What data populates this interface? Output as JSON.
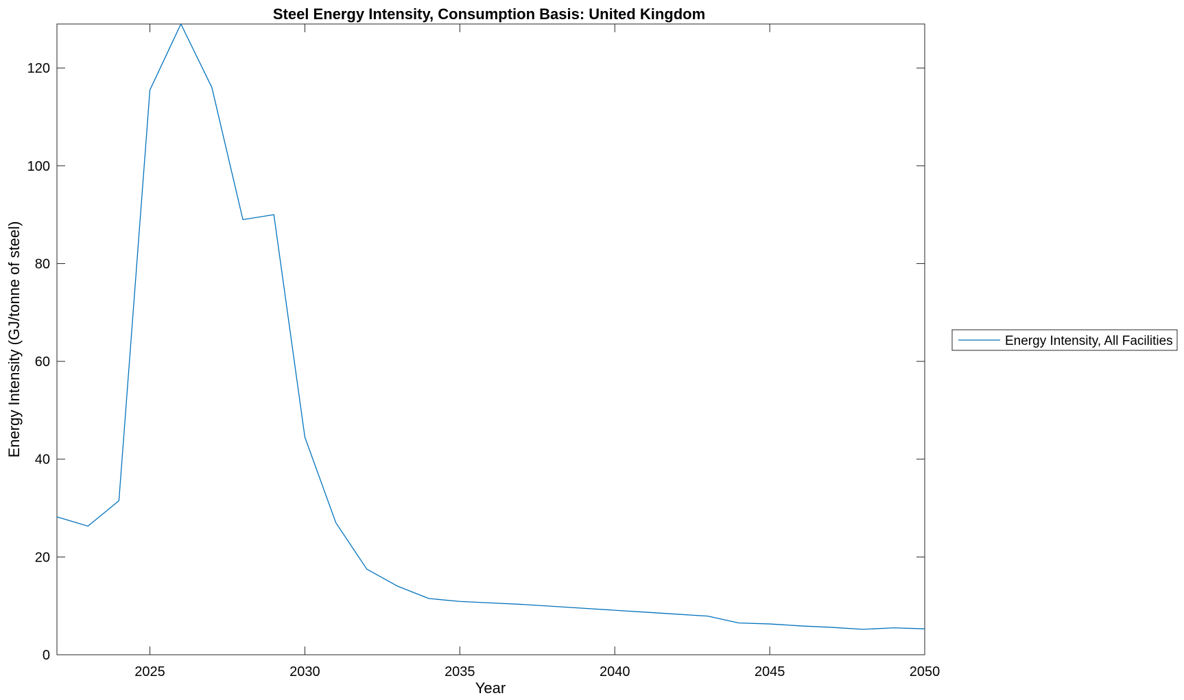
{
  "chart_data": {
    "type": "line",
    "title": "Steel Energy Intensity, Consumption Basis: United Kingdom",
    "xlabel": "Year",
    "ylabel": "Energy Intensity (GJ/tonne of steel)",
    "xlim": [
      2022,
      2050
    ],
    "ylim": [
      0,
      129
    ],
    "xticks": [
      2025,
      2030,
      2035,
      2040,
      2045,
      2050
    ],
    "yticks": [
      0,
      20,
      40,
      60,
      80,
      100,
      120
    ],
    "grid": false,
    "legend_position": "outside-right",
    "series": [
      {
        "name": "Energy Intensity, All Facilities",
        "color": "#0072BD",
        "x": [
          2022,
          2023,
          2024,
          2025,
          2026,
          2027,
          2028,
          2029,
          2030,
          2031,
          2032,
          2033,
          2034,
          2035,
          2036,
          2037,
          2038,
          2039,
          2040,
          2041,
          2042,
          2043,
          2044,
          2045,
          2046,
          2047,
          2048,
          2049,
          2050
        ],
        "y": [
          28.2,
          26.3,
          31.5,
          115.5,
          129.0,
          116.0,
          89.0,
          90.0,
          44.5,
          27.0,
          17.5,
          14.0,
          11.5,
          10.9,
          10.6,
          10.3,
          9.9,
          9.5,
          9.1,
          8.7,
          8.3,
          7.9,
          6.5,
          6.3,
          5.9,
          5.6,
          5.2,
          5.5,
          5.3
        ]
      }
    ]
  }
}
